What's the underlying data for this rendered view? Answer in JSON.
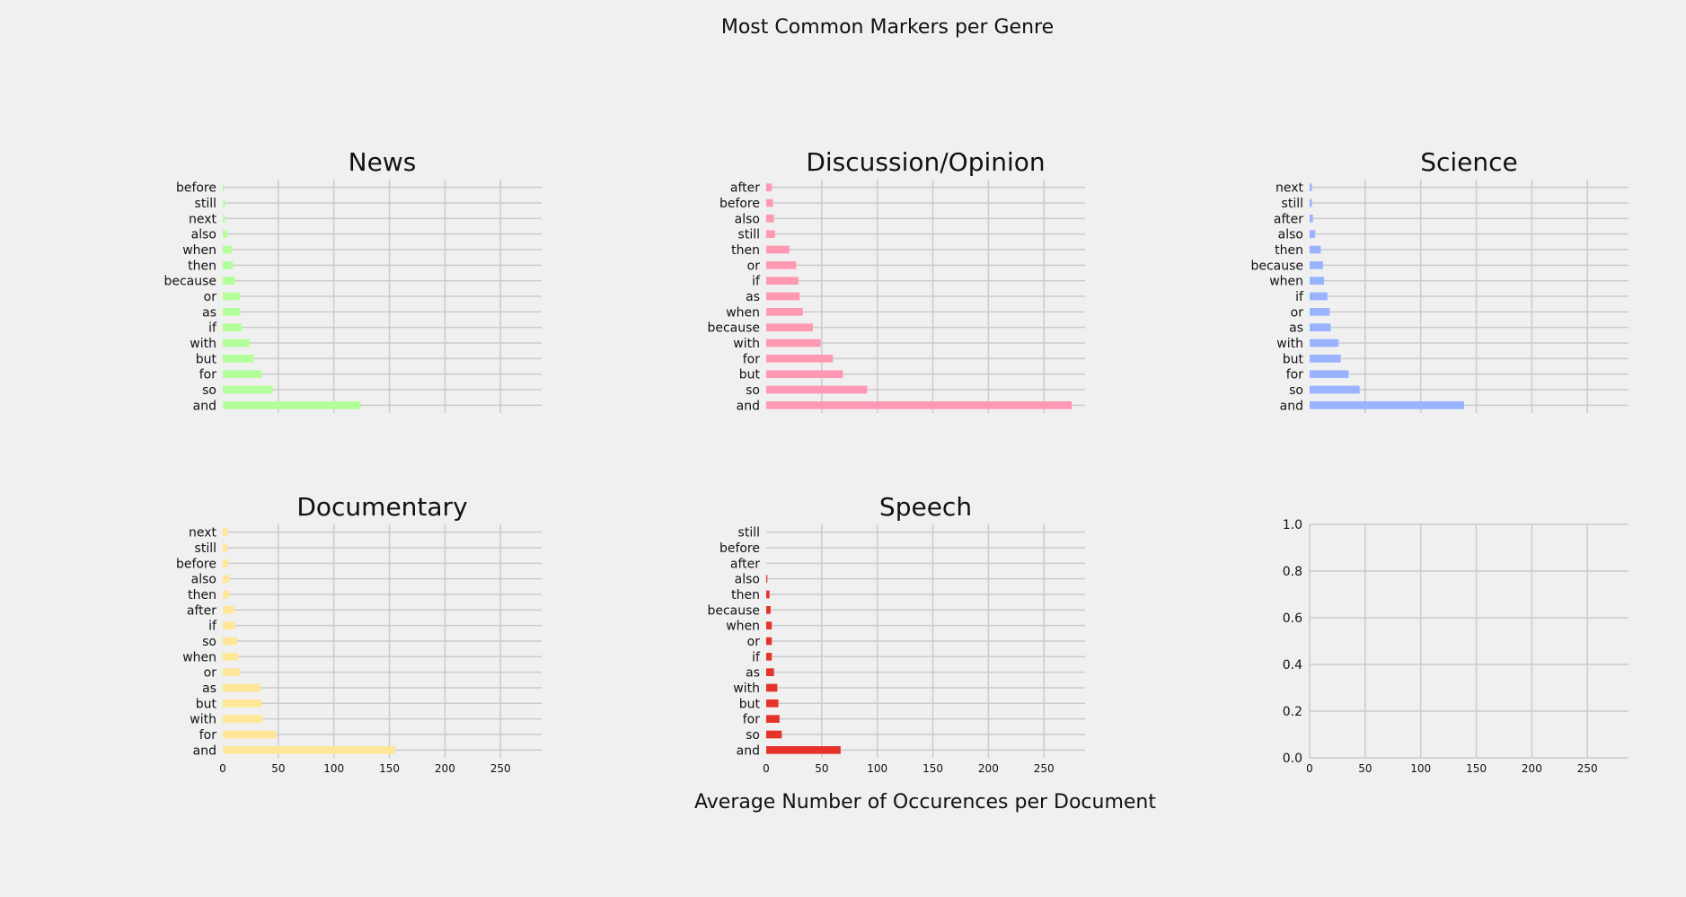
{
  "figure": {
    "suptitle": "Most Common Markers per Genre",
    "xlabel": "Average Number of Occurences per Document"
  },
  "chart_data": [
    {
      "type": "bar",
      "orientation": "horizontal",
      "title": "News",
      "color": "#b3ff99",
      "xlim": [
        0,
        287
      ],
      "xticks": [
        0,
        50,
        100,
        150,
        200,
        250
      ],
      "xticks_visible": false,
      "grid": true,
      "categories": [
        "and",
        "so",
        "for",
        "but",
        "with",
        "if",
        "as",
        "or",
        "because",
        "then",
        "when",
        "also",
        "next",
        "still",
        "before"
      ],
      "values": [
        124,
        45,
        35,
        28,
        24,
        17,
        16,
        15,
        11,
        9,
        8,
        4,
        2,
        2,
        1
      ]
    },
    {
      "type": "bar",
      "orientation": "horizontal",
      "title": "Discussion/Opinion",
      "color": "#ff99b3",
      "xlim": [
        0,
        287
      ],
      "xticks": [
        0,
        50,
        100,
        150,
        200,
        250
      ],
      "xticks_visible": false,
      "grid": true,
      "categories": [
        "and",
        "so",
        "but",
        "for",
        "with",
        "because",
        "when",
        "as",
        "if",
        "or",
        "then",
        "still",
        "also",
        "before",
        "after"
      ],
      "values": [
        275,
        91,
        69,
        60,
        49,
        42,
        33,
        30,
        29,
        27,
        21,
        8,
        7,
        6,
        5
      ]
    },
    {
      "type": "bar",
      "orientation": "horizontal",
      "title": "Science",
      "color": "#99b3ff",
      "xlim": [
        0,
        287
      ],
      "xticks": [
        0,
        50,
        100,
        150,
        200,
        250
      ],
      "xticks_visible": false,
      "grid": true,
      "categories": [
        "and",
        "so",
        "for",
        "but",
        "with",
        "as",
        "or",
        "if",
        "when",
        "because",
        "then",
        "also",
        "after",
        "still",
        "next"
      ],
      "values": [
        139,
        45,
        35,
        28,
        26,
        19,
        18,
        16,
        13,
        12,
        10,
        5,
        3,
        2,
        2
      ]
    },
    {
      "type": "bar",
      "orientation": "horizontal",
      "title": "Documentary",
      "color": "#ffe699",
      "xlim": [
        0,
        287
      ],
      "xticks": [
        0,
        50,
        100,
        150,
        200,
        250
      ],
      "grid": true,
      "categories": [
        "and",
        "for",
        "with",
        "but",
        "as",
        "or",
        "when",
        "so",
        "if",
        "after",
        "then",
        "also",
        "before",
        "still",
        "next"
      ],
      "values": [
        155,
        48,
        36,
        35,
        34,
        15,
        14,
        13,
        11,
        10,
        6,
        6,
        5,
        4,
        4
      ]
    },
    {
      "type": "bar",
      "orientation": "horizontal",
      "title": "Speech",
      "color": "#e6332a",
      "xlim": [
        0,
        287
      ],
      "xticks": [
        0,
        50,
        100,
        150,
        200,
        250
      ],
      "grid": true,
      "categories": [
        "and",
        "so",
        "for",
        "but",
        "with",
        "as",
        "if",
        "or",
        "when",
        "because",
        "then",
        "also",
        "after",
        "before",
        "still"
      ],
      "values": [
        67,
        14,
        12,
        11,
        10,
        7,
        5,
        5,
        5,
        4,
        3,
        1,
        0,
        0,
        0
      ]
    },
    {
      "type": "empty",
      "title": "",
      "xlim": [
        0,
        287
      ],
      "xticks": [
        0,
        50,
        100,
        150,
        200,
        250
      ],
      "ylim": [
        0,
        1
      ],
      "yticks": [
        "0.0",
        "0.2",
        "0.4",
        "0.6",
        "0.8",
        "1.0"
      ],
      "grid": true
    }
  ]
}
